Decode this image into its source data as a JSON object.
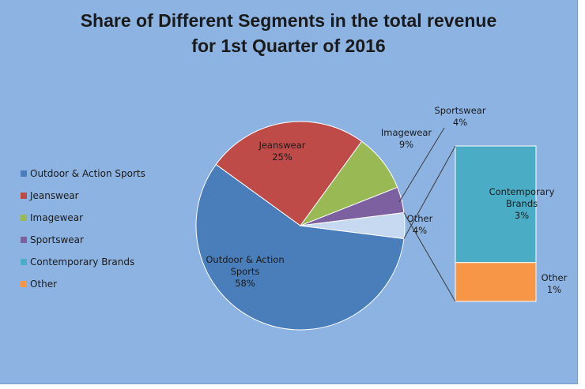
{
  "title_lines": [
    "Share of Different Segments in the total revenue",
    "for 1st Quarter of 2016"
  ],
  "chart_data": {
    "type": "pie",
    "subtype": "pie-of-pie (stacked bar breakout)",
    "title": "Share of Different Segments in the total revenue for 1st Quarter of 2016",
    "legend_position": "left",
    "slices": [
      {
        "name": "Outdoor & Action Sports",
        "label_lines": [
          "Outdoor & Action",
          "Sports",
          "58%"
        ],
        "value": 58,
        "color": "#4a7ebb"
      },
      {
        "name": "Jeanswear",
        "label_lines": [
          "Jeanswear",
          "25%"
        ],
        "value": 25,
        "color": "#be4b48"
      },
      {
        "name": "Imagewear",
        "label_lines": [
          "Imagewear",
          "9%"
        ],
        "value": 9,
        "color": "#98b954"
      },
      {
        "name": "Sportswear",
        "label_lines": [
          "Sportswear",
          "4%"
        ],
        "value": 4,
        "color": "#7d60a0"
      },
      {
        "name": "Other",
        "label_lines": [
          "Other",
          "4%"
        ],
        "value": 4,
        "color": "#c6d9f1",
        "is_breakout_group": true
      }
    ],
    "breakout": [
      {
        "name": "Contemporary Brands",
        "label_lines": [
          "Contemporary",
          "Brands",
          "3%"
        ],
        "value": 3,
        "color": "#4aacc5"
      },
      {
        "name": "Other",
        "label_lines": [
          "Other",
          "1%"
        ],
        "value": 1,
        "color": "#f79646"
      }
    ],
    "legend": [
      {
        "name": "Outdoor & Action Sports",
        "color": "#4a7ebb"
      },
      {
        "name": "Jeanswear",
        "color": "#be4b48"
      },
      {
        "name": "Imagewear",
        "color": "#98b954"
      },
      {
        "name": "Sportswear",
        "color": "#7d60a0"
      },
      {
        "name": "Contemporary Brands",
        "color": "#4aacc5"
      },
      {
        "name": "Other",
        "color": "#f79646"
      }
    ]
  }
}
